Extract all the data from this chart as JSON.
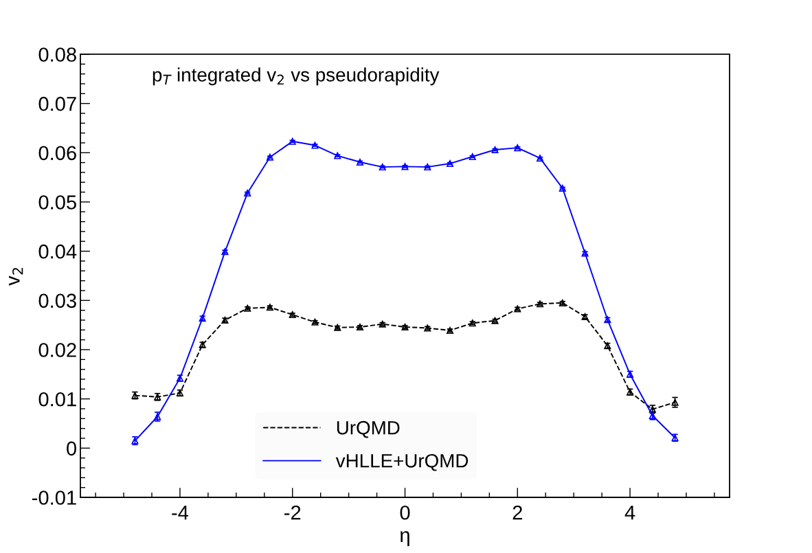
{
  "chart_data": {
    "type": "line",
    "xlabel": "η",
    "ylabel": "v$_{2}$",
    "annotations": [
      "p$_{T}$ integrated v$_{2}$ vs pseudorapidity"
    ],
    "x": [
      -4.8,
      -4.4,
      -4.0,
      -3.6,
      -3.2,
      -2.8,
      -2.4,
      -2.0,
      -1.6,
      -1.2,
      -0.8,
      -0.4,
      0.0,
      0.4,
      0.8,
      1.2,
      1.6,
      2.0,
      2.4,
      2.8,
      3.2,
      3.6,
      4.0,
      4.4,
      4.8
    ],
    "series": [
      {
        "name": "UrQMD",
        "color": "#000000",
        "line_style": "dashed",
        "values": [
          0.0107,
          0.0104,
          0.0112,
          0.021,
          0.026,
          0.0284,
          0.0286,
          0.0271,
          0.0256,
          0.0245,
          0.0246,
          0.0252,
          0.0246,
          0.0244,
          0.0239,
          0.0254,
          0.0259,
          0.0283,
          0.0293,
          0.0295,
          0.0267,
          0.0208,
          0.0114,
          0.0079,
          0.0093
        ],
        "errors": [
          0.0007,
          0.0007,
          0.0006,
          0.0005,
          0.0004,
          0.0003,
          0.0003,
          0.0003,
          0.0003,
          0.0003,
          0.0003,
          0.0003,
          0.0003,
          0.0003,
          0.0003,
          0.0003,
          0.0003,
          0.0003,
          0.0003,
          0.0003,
          0.0004,
          0.0005,
          0.0006,
          0.0008,
          0.001
        ]
      },
      {
        "name": "vHLLE+UrQMD",
        "color": "#0000ff",
        "line_style": "solid",
        "values": [
          0.0015,
          0.0064,
          0.0142,
          0.0264,
          0.0399,
          0.0518,
          0.0591,
          0.0623,
          0.0615,
          0.0594,
          0.0581,
          0.0571,
          0.0572,
          0.0571,
          0.0578,
          0.0592,
          0.0606,
          0.061,
          0.0589,
          0.0528,
          0.0396,
          0.0261,
          0.015,
          0.0066,
          0.0021
        ],
        "errors": [
          0.0008,
          0.0009,
          0.0006,
          0.0004,
          0.0003,
          0.0002,
          0.0002,
          0.0002,
          0.0002,
          0.0002,
          0.0002,
          0.0002,
          0.0002,
          0.0002,
          0.0002,
          0.0002,
          0.0002,
          0.0002,
          0.0002,
          0.0002,
          0.0003,
          0.0004,
          0.0006,
          0.0008,
          0.0007
        ]
      }
    ],
    "xlim": [
      -5.77,
      5.77
    ],
    "xticks": [
      -4,
      -2,
      0,
      2,
      4
    ],
    "ylim": [
      -0.01,
      0.08
    ],
    "yticks": [
      -0.01,
      0,
      0.01,
      0.02,
      0.03,
      0.04,
      0.05,
      0.06,
      0.07,
      0.08
    ],
    "marker": "triangle",
    "legend": "bottom",
    "grid": false
  }
}
